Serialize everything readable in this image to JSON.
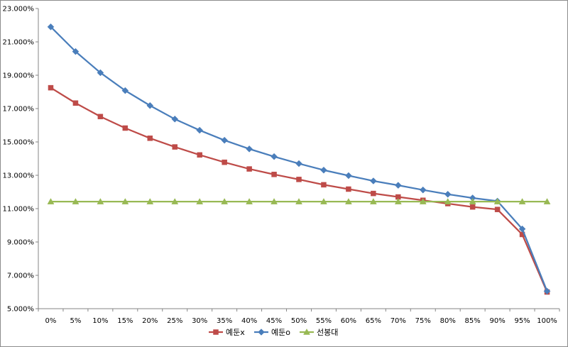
{
  "chart_data": {
    "type": "line",
    "title": "",
    "xlabel": "",
    "ylabel": "",
    "categories": [
      "0%",
      "5%",
      "10%",
      "15%",
      "20%",
      "25%",
      "30%",
      "35%",
      "40%",
      "45%",
      "50%",
      "55%",
      "60%",
      "65%",
      "70%",
      "75%",
      "80%",
      "85%",
      "90%",
      "95%",
      "100%"
    ],
    "y_ticks": [
      "5.000%",
      "7.000%",
      "9.000%",
      "11.000%",
      "13.000%",
      "15.000%",
      "17.000%",
      "19.000%",
      "21.000%",
      "23.000%"
    ],
    "ylim": [
      5,
      23
    ],
    "grid": false,
    "legend_position": "bottom",
    "series": [
      {
        "name": "예둔x",
        "color": "#be4b48",
        "marker": "square",
        "values": [
          18.25,
          17.33,
          16.52,
          15.83,
          15.22,
          14.7,
          14.22,
          13.78,
          13.38,
          13.05,
          12.75,
          12.43,
          12.17,
          11.91,
          11.7,
          11.5,
          11.3,
          11.1,
          10.95,
          9.45,
          6.0
        ]
      },
      {
        "name": "예둔o",
        "color": "#4a7ebb",
        "marker": "diamond",
        "values": [
          21.9,
          20.42,
          19.15,
          18.08,
          17.18,
          16.37,
          15.7,
          15.1,
          14.58,
          14.12,
          13.7,
          13.31,
          12.98,
          12.66,
          12.4,
          12.12,
          11.86,
          11.64,
          11.45,
          9.78,
          6.05
        ]
      },
      {
        "name": "선봉대",
        "color": "#98b954",
        "marker": "triangle",
        "values": [
          11.42,
          11.42,
          11.42,
          11.42,
          11.42,
          11.42,
          11.42,
          11.42,
          11.42,
          11.42,
          11.42,
          11.42,
          11.42,
          11.42,
          11.42,
          11.42,
          11.42,
          11.42,
          11.42,
          11.42,
          11.42
        ]
      }
    ]
  }
}
